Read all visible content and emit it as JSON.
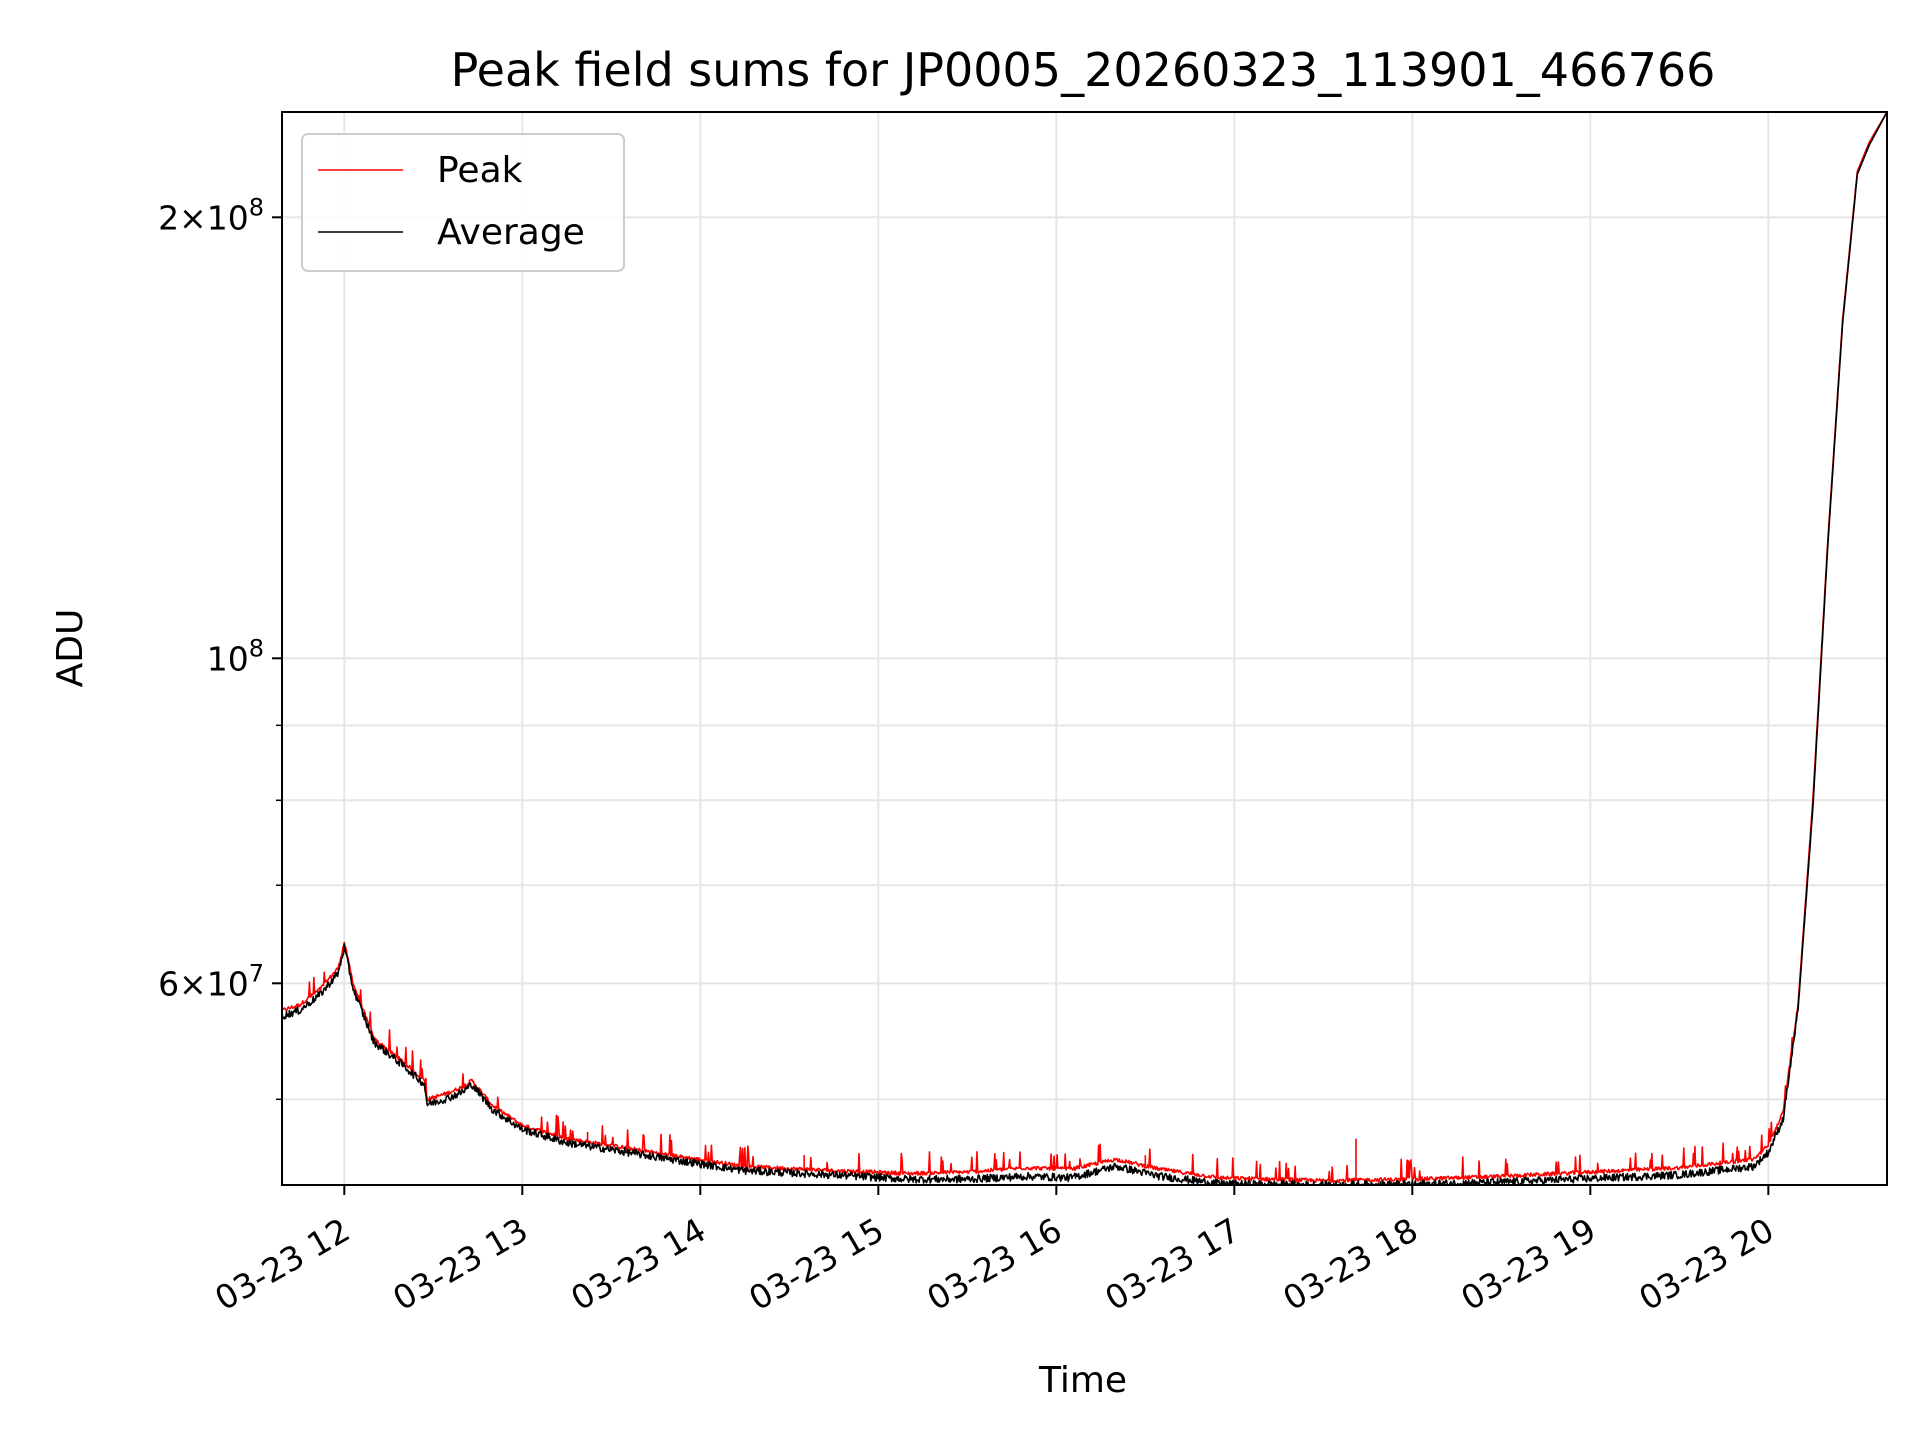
{
  "chart_data": {
    "type": "line",
    "title": "Peak field sums for JP0005_20260323_113901_466766",
    "xlabel": "Time",
    "ylabel": "ADU",
    "y_scale": "log",
    "xlim": [
      "2026-03-23 11:39",
      "2026-03-23 20:40"
    ],
    "ylim": [
      43700000,
      236000000
    ],
    "grid": true,
    "legend_position": "upper left",
    "x_ticks": [
      "03-23 12",
      "03-23 13",
      "03-23 14",
      "03-23 15",
      "03-23 16",
      "03-23 17",
      "03-23 18",
      "03-23 19",
      "03-23 20"
    ],
    "y_ticks": [
      {
        "value": 200000000,
        "base": "2",
        "mantissa": "10",
        "exponent": "8"
      },
      {
        "value": 100000000,
        "base": "",
        "mantissa": "10",
        "exponent": "8"
      },
      {
        "value": 60000000,
        "base": "6",
        "mantissa": "10",
        "exponent": "7"
      }
    ],
    "series": [
      {
        "name": "Peak",
        "color": "#ff0000",
        "x": [
          "2026-03-23 11:39",
          "2026-03-23 11:45",
          "2026-03-23 11:52",
          "2026-03-23 11:58",
          "2026-03-23 12:00",
          "2026-03-23 12:03",
          "2026-03-23 12:10",
          "2026-03-23 12:20",
          "2026-03-23 12:27",
          "2026-03-23 12:28",
          "2026-03-23 12:35",
          "2026-03-23 12:40",
          "2026-03-23 12:43",
          "2026-03-23 12:50",
          "2026-03-23 13:00",
          "2026-03-23 13:15",
          "2026-03-23 13:30",
          "2026-03-23 13:50",
          "2026-03-23 14:15",
          "2026-03-23 14:45",
          "2026-03-23 15:10",
          "2026-03-23 15:30",
          "2026-03-23 15:50",
          "2026-03-23 16:05",
          "2026-03-23 16:20",
          "2026-03-23 16:35",
          "2026-03-23 16:55",
          "2026-03-23 17:30",
          "2026-03-23 18:00",
          "2026-03-23 18:30",
          "2026-03-23 19:00",
          "2026-03-23 19:30",
          "2026-03-23 19:55",
          "2026-03-23 20:00",
          "2026-03-23 20:05",
          "2026-03-23 20:10",
          "2026-03-23 20:15",
          "2026-03-23 20:20",
          "2026-03-23 20:25",
          "2026-03-23 20:30",
          "2026-03-23 20:34",
          "2026-03-23 20:40"
        ],
        "values": [
          57500000,
          58000000,
          59500000,
          61500000,
          64000000,
          60000000,
          55000000,
          53000000,
          51500000,
          50000000,
          50500000,
          51000000,
          51500000,
          49500000,
          48000000,
          47000000,
          46500000,
          45800000,
          45000000,
          44700000,
          44500000,
          44600000,
          44900000,
          44800000,
          45500000,
          44800000,
          44200000,
          44000000,
          44100000,
          44300000,
          44600000,
          44900000,
          45500000,
          46500000,
          49000000,
          58000000,
          80000000,
          120000000,
          170000000,
          215000000,
          225000000,
          236000000
        ],
        "spikes": [
          {
            "x": "2026-03-23 13:22",
            "value": 47500000
          },
          {
            "x": "2026-03-23 17:41",
            "value": 47000000
          },
          {
            "x": "2026-03-23 14:35",
            "value": 45800000
          },
          {
            "x": "2026-03-23 16:30",
            "value": 45800000
          }
        ]
      },
      {
        "name": "Average",
        "color": "#000000",
        "x": [
          "2026-03-23 11:39",
          "2026-03-23 11:45",
          "2026-03-23 11:52",
          "2026-03-23 11:58",
          "2026-03-23 12:00",
          "2026-03-23 12:03",
          "2026-03-23 12:10",
          "2026-03-23 12:20",
          "2026-03-23 12:27",
          "2026-03-23 12:28",
          "2026-03-23 12:35",
          "2026-03-23 12:40",
          "2026-03-23 12:43",
          "2026-03-23 12:50",
          "2026-03-23 13:00",
          "2026-03-23 13:15",
          "2026-03-23 13:30",
          "2026-03-23 13:50",
          "2026-03-23 14:15",
          "2026-03-23 14:45",
          "2026-03-23 15:10",
          "2026-03-23 15:30",
          "2026-03-23 15:50",
          "2026-03-23 16:05",
          "2026-03-23 16:20",
          "2026-03-23 16:35",
          "2026-03-23 16:55",
          "2026-03-23 17:30",
          "2026-03-23 18:00",
          "2026-03-23 18:30",
          "2026-03-23 19:00",
          "2026-03-23 19:30",
          "2026-03-23 19:55",
          "2026-03-23 20:00",
          "2026-03-23 20:05",
          "2026-03-23 20:10",
          "2026-03-23 20:15",
          "2026-03-23 20:20",
          "2026-03-23 20:25",
          "2026-03-23 20:30",
          "2026-03-23 20:34",
          "2026-03-23 20:40"
        ],
        "values": [
          57000000,
          57500000,
          59000000,
          61000000,
          63500000,
          59500000,
          54700000,
          52700000,
          51200000,
          49600000,
          50100000,
          50600000,
          51200000,
          49200000,
          47700000,
          46700000,
          46200000,
          45500000,
          44700000,
          44400000,
          44100000,
          44100000,
          44300000,
          44200000,
          45000000,
          44300000,
          43800000,
          43700000,
          43750000,
          43900000,
          44150000,
          44400000,
          45000000,
          46000000,
          48500000,
          57500000,
          79000000,
          119000000,
          169000000,
          214000000,
          224000000,
          236000000
        ]
      }
    ]
  }
}
